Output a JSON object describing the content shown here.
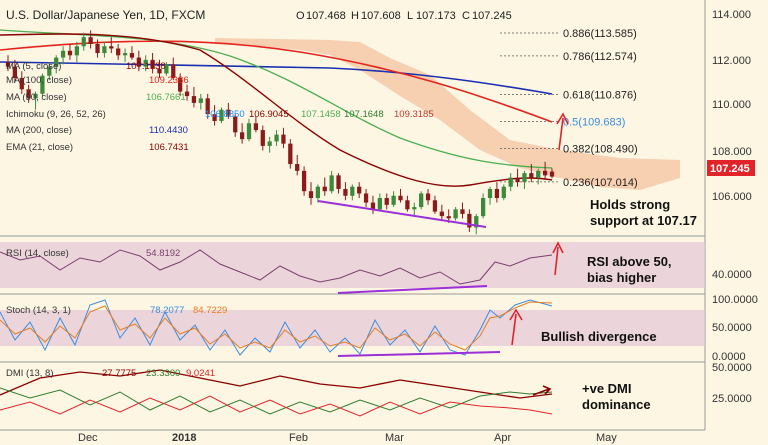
{
  "chart_data": {
    "type": "candlestick",
    "title": "U.S. Dollar/Japanese Yen, 1D, FXCM",
    "ohlc": {
      "o": "107.468",
      "h": "107.608",
      "l": "107.173",
      "c": "107.245"
    },
    "price_badge": "107.245",
    "x_ticks": [
      "Dec",
      "2018",
      "Feb",
      "Mar",
      "Apr",
      "May"
    ],
    "price_axis": {
      "ticks": [
        "114.000",
        "112.000",
        "110.000",
        "108.000",
        "106.000"
      ],
      "ylim": [
        104.8,
        114.6
      ]
    },
    "legend": [
      {
        "label": "MA (5, close)",
        "value": "107.1738",
        "color": "#8b0000"
      },
      {
        "label": "MA (100, close)",
        "value": "109.2386",
        "color": "#e5241e"
      },
      {
        "label": "MA (50, close)",
        "value": "106.7661",
        "color": "#4caf50"
      },
      {
        "label": "Ichimoku (9, 26, 52, 26)",
        "values": [
          "106.8850",
          "106.9045",
          "107.1458",
          "107.1648",
          "109.3185"
        ],
        "colors": [
          "#1e90ff",
          "#8b0000",
          "#4caf50",
          "#2e7d32",
          "#c0392b"
        ]
      },
      {
        "label": "MA (200, close)",
        "value": "110.4430",
        "color": "#1a2fb0"
      },
      {
        "label": "EMA (21, close)",
        "value": "106.7431",
        "color": "#8b0000"
      }
    ],
    "fib_levels": [
      {
        "label": "0.886(113.585)",
        "value": 113.585
      },
      {
        "label": "0.786(112.574)",
        "value": 112.574
      },
      {
        "label": "0.618(110.876)",
        "value": 110.876
      },
      {
        "label": "0.5(109.683)",
        "value": 109.683
      },
      {
        "label": "0.382(108.490)",
        "value": 108.49
      },
      {
        "label": "0.236(107.014)",
        "value": 107.014
      }
    ],
    "candles": [
      [
        112.3,
        112.6,
        111.9,
        112.1
      ],
      [
        112.1,
        112.4,
        111.4,
        111.6
      ],
      [
        111.6,
        111.9,
        110.9,
        111.1
      ],
      [
        111.1,
        111.3,
        110.5,
        110.7
      ],
      [
        110.7,
        111.0,
        110.2,
        110.9
      ],
      [
        110.9,
        111.8,
        110.8,
        111.7
      ],
      [
        111.7,
        112.3,
        111.5,
        112.1
      ],
      [
        112.1,
        112.6,
        111.8,
        112.5
      ],
      [
        112.5,
        113.0,
        112.2,
        112.8
      ],
      [
        112.8,
        113.1,
        112.4,
        112.6
      ],
      [
        112.6,
        113.2,
        112.3,
        113.0
      ],
      [
        113.0,
        113.6,
        112.8,
        113.4
      ],
      [
        113.4,
        113.7,
        112.9,
        113.1
      ],
      [
        113.1,
        113.3,
        112.5,
        112.7
      ],
      [
        112.7,
        113.2,
        112.5,
        113.0
      ],
      [
        113.0,
        113.4,
        112.7,
        112.9
      ],
      [
        112.9,
        113.1,
        112.4,
        112.6
      ],
      [
        112.6,
        112.9,
        112.3,
        112.7
      ],
      [
        112.7,
        113.0,
        112.4,
        112.5
      ],
      [
        112.5,
        112.8,
        111.9,
        112.1
      ],
      [
        112.1,
        112.6,
        111.9,
        112.4
      ],
      [
        112.4,
        112.7,
        111.8,
        112.0
      ],
      [
        112.0,
        112.4,
        111.6,
        111.8
      ],
      [
        111.8,
        112.3,
        111.7,
        112.2
      ],
      [
        112.2,
        112.5,
        111.5,
        111.6
      ],
      [
        111.6,
        111.8,
        110.8,
        111.0
      ],
      [
        111.0,
        111.3,
        110.6,
        110.8
      ],
      [
        110.8,
        111.2,
        110.3,
        110.5
      ],
      [
        110.5,
        110.9,
        110.2,
        110.7
      ],
      [
        110.7,
        110.9,
        109.8,
        110.0
      ],
      [
        110.0,
        110.4,
        109.5,
        109.7
      ],
      [
        109.7,
        110.3,
        109.6,
        110.2
      ],
      [
        110.2,
        110.5,
        109.8,
        109.9
      ],
      [
        109.9,
        110.0,
        109.0,
        109.2
      ],
      [
        109.2,
        109.6,
        108.7,
        108.9
      ],
      [
        108.9,
        109.8,
        108.8,
        109.6
      ],
      [
        109.6,
        109.9,
        109.2,
        109.3
      ],
      [
        109.3,
        109.5,
        108.4,
        108.6
      ],
      [
        108.6,
        109.0,
        108.3,
        108.8
      ],
      [
        108.8,
        109.3,
        108.6,
        109.1
      ],
      [
        109.1,
        109.4,
        108.5,
        108.7
      ],
      [
        108.7,
        108.9,
        107.6,
        107.8
      ],
      [
        107.8,
        108.2,
        107.3,
        107.5
      ],
      [
        107.5,
        107.7,
        106.4,
        106.6
      ],
      [
        106.6,
        107.0,
        106.0,
        106.3
      ],
      [
        106.3,
        106.9,
        106.1,
        106.8
      ],
      [
        106.8,
        107.2,
        106.4,
        106.6
      ],
      [
        106.6,
        107.5,
        106.5,
        107.3
      ],
      [
        107.3,
        107.4,
        106.5,
        106.7
      ],
      [
        106.7,
        107.0,
        106.2,
        106.4
      ],
      [
        106.4,
        106.9,
        106.2,
        106.8
      ],
      [
        106.8,
        107.0,
        106.3,
        106.5
      ],
      [
        106.5,
        106.7,
        105.9,
        106.1
      ],
      [
        106.1,
        106.4,
        105.6,
        105.8
      ],
      [
        105.8,
        106.5,
        105.7,
        106.3
      ],
      [
        106.3,
        106.5,
        105.8,
        106.0
      ],
      [
        106.0,
        106.6,
        105.9,
        106.4
      ],
      [
        106.4,
        106.7,
        106.1,
        106.2
      ],
      [
        106.2,
        106.4,
        105.7,
        105.8
      ],
      [
        105.8,
        106.1,
        105.5,
        105.9
      ],
      [
        105.9,
        106.6,
        105.8,
        106.5
      ],
      [
        106.5,
        106.7,
        106.0,
        106.2
      ],
      [
        106.2,
        106.4,
        105.6,
        105.7
      ],
      [
        105.7,
        106.0,
        105.3,
        105.5
      ],
      [
        105.5,
        105.8,
        105.2,
        105.4
      ],
      [
        105.4,
        105.9,
        105.3,
        105.8
      ],
      [
        105.8,
        106.1,
        105.4,
        105.6
      ],
      [
        105.6,
        105.8,
        104.8,
        105.0
      ],
      [
        105.0,
        105.6,
        104.7,
        105.5
      ],
      [
        105.5,
        106.5,
        105.4,
        106.3
      ],
      [
        106.3,
        106.8,
        106.0,
        106.7
      ],
      [
        106.7,
        107.0,
        106.1,
        106.3
      ],
      [
        106.3,
        106.9,
        106.2,
        106.8
      ],
      [
        106.8,
        107.4,
        106.6,
        107.2
      ],
      [
        107.2,
        107.6,
        106.8,
        107.0
      ],
      [
        107.0,
        107.5,
        106.7,
        107.4
      ],
      [
        107.4,
        107.8,
        107.0,
        107.2
      ],
      [
        107.2,
        107.6,
        106.9,
        107.5
      ],
      [
        107.5,
        107.9,
        107.1,
        107.3
      ],
      [
        107.468,
        107.608,
        107.173,
        107.245
      ]
    ],
    "sub_panels": [
      {
        "label": "RSI (14, close)",
        "value": "54.8192",
        "ticks": [
          "40.0000"
        ]
      },
      {
        "label": "Stoch (14, 3, 1)",
        "values": [
          "78.2077",
          "84.7229"
        ],
        "ticks": [
          "100.0000",
          "50.0000",
          "0.0000"
        ]
      },
      {
        "label": "DMI (13, 8)",
        "values": [
          "27.7775",
          "23.3300",
          "9.0241"
        ],
        "ticks": [
          "50.0000",
          "25.0000"
        ]
      }
    ],
    "annotations": [
      {
        "id": "support",
        "lines": [
          "Holds strong",
          "support at 107.17"
        ]
      },
      {
        "id": "rsi",
        "lines": [
          "RSI above 50,",
          "bias higher"
        ]
      },
      {
        "id": "stoch",
        "lines": [
          "Bullish divergence"
        ]
      },
      {
        "id": "dmi",
        "lines": [
          "+ve DMI",
          "dominance"
        ]
      }
    ]
  },
  "colors": {
    "background": "#fdf6e3",
    "bull": "#3c8a3c",
    "bear": "#8b1a1a",
    "cloud": "#f5c9a8",
    "purple": "#9b30d9",
    "red_arrow": "#e0242a",
    "badge": "#e0242a",
    "band": "#e2c7d6"
  }
}
